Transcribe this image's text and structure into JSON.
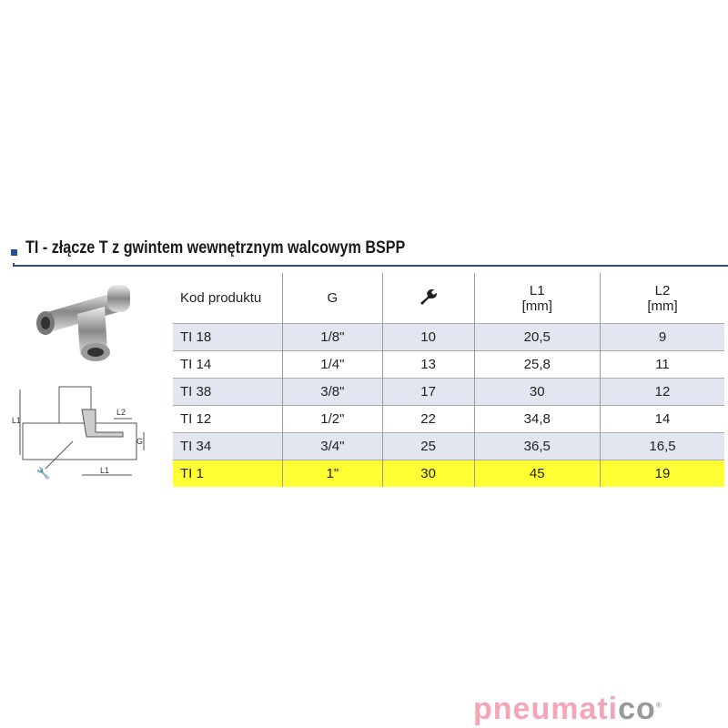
{
  "title": "TI - złącze T z gwintem wewnętrznym walcowym BSPP",
  "table": {
    "headers": {
      "code": "Kod produktu",
      "g": "G",
      "wrench_icon": "wrench-icon",
      "l1": "L1",
      "l1_unit": "[mm]",
      "l2": "L2",
      "l2_unit": "[mm]"
    },
    "rows": [
      {
        "code": "TI 18",
        "g": "1/8\"",
        "wrench": "10",
        "l1": "20,5",
        "l2": "9"
      },
      {
        "code": "TI 14",
        "g": "1/4\"",
        "wrench": "13",
        "l1": "25,8",
        "l2": "11"
      },
      {
        "code": "TI 38",
        "g": "3/8\"",
        "wrench": "17",
        "l1": "30",
        "l2": "12"
      },
      {
        "code": "TI 12",
        "g": "1/2\"",
        "wrench": "22",
        "l1": "34,8",
        "l2": "14"
      },
      {
        "code": "TI 34",
        "g": "3/4\"",
        "wrench": "25",
        "l1": "36,5",
        "l2": "16,5"
      },
      {
        "code": "TI 1",
        "g": "1\"",
        "wrench": "30",
        "l1": "45",
        "l2": "19"
      }
    ],
    "highlight_color": "#ffff33",
    "stripe_color": "#e2e6f0"
  },
  "drawing": {
    "l1": "L1",
    "l2": "L2",
    "g": "G"
  },
  "logo": {
    "main": "pneumati",
    "suffix": "co",
    "mark": "®"
  }
}
